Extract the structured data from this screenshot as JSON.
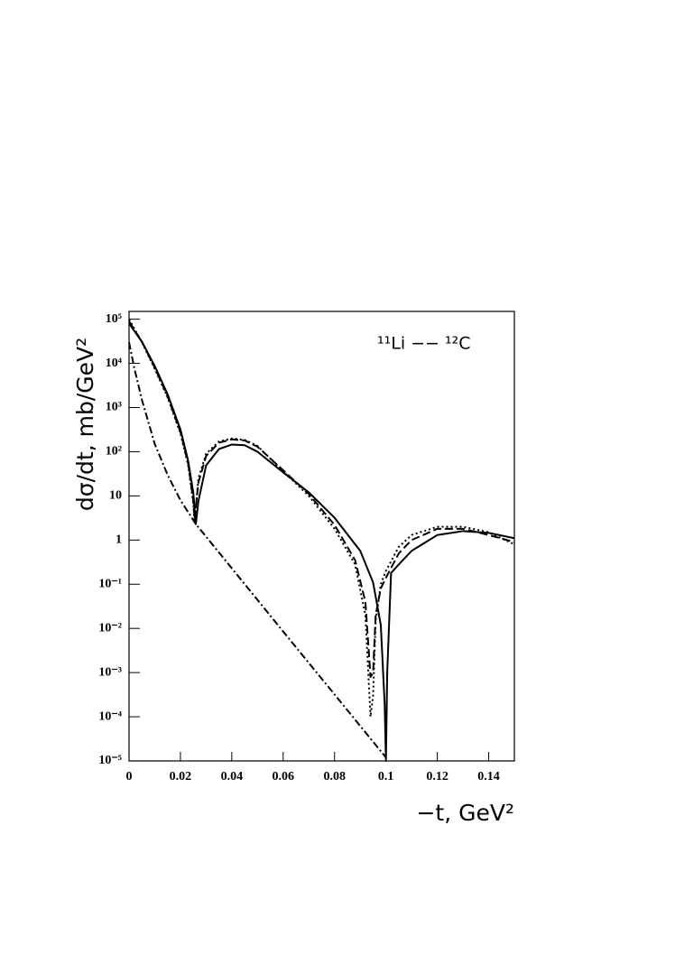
{
  "chart_data": {
    "type": "line",
    "annotation": "¹¹Li −− ¹²C",
    "x_label": "−t, GeV²",
    "y_label": "dσ/dt, mb/GeV²",
    "log_y": true,
    "xlim": [
      0,
      0.15
    ],
    "ylim": [
      1e-05,
      150000
    ],
    "xticks": [
      0,
      0.02,
      0.04,
      0.06,
      0.08,
      0.1,
      0.12,
      0.14
    ],
    "yticks": [
      {
        "value": 100000,
        "label": "10⁵"
      },
      {
        "value": 10000,
        "label": "10⁴"
      },
      {
        "value": 1000,
        "label": "10³"
      },
      {
        "value": 100,
        "label": "10²"
      },
      10,
      1,
      {
        "value": 0.1,
        "label": "10⁻¹"
      },
      {
        "value": 0.01,
        "label": "10⁻²"
      },
      {
        "value": 0.001,
        "label": "10⁻³"
      },
      {
        "value": 0.0001,
        "label": "10⁻⁴"
      },
      {
        "value": 1e-05,
        "label": "10⁻⁵"
      }
    ],
    "series": [
      {
        "color": "#000000",
        "style": "solid",
        "x": [
          0,
          0.005,
          0.01,
          0.015,
          0.02,
          0.023,
          0.025,
          0.026,
          0.027,
          0.03,
          0.035,
          0.04,
          0.045,
          0.05,
          0.06,
          0.07,
          0.08,
          0.09,
          0.095,
          0.098,
          0.0995,
          0.1,
          0.1005,
          0.102,
          0.105,
          0.11,
          0.12,
          0.13,
          0.14,
          0.15
        ],
        "values": [
          80000,
          31000,
          8700,
          2000,
          320,
          63,
          12,
          2.3,
          7.6,
          49,
          115,
          145,
          140,
          100,
          34,
          12,
          3.2,
          0.57,
          0.11,
          0.012,
          0.0002,
          1e-05,
          0.001,
          0.18,
          0.28,
          0.57,
          1.3,
          1.6,
          1.45,
          1.1
        ]
      },
      {
        "color": "#000000",
        "style": "dashed",
        "x": [
          0,
          0.005,
          0.01,
          0.015,
          0.02,
          0.023,
          0.025,
          0.0255,
          0.027,
          0.03,
          0.035,
          0.04,
          0.045,
          0.05,
          0.06,
          0.07,
          0.08,
          0.088,
          0.092,
          0.094,
          0.095,
          0.096,
          0.098,
          0.1,
          0.105,
          0.11,
          0.12,
          0.13,
          0.14,
          0.15
        ],
        "values": [
          90000,
          31000,
          8000,
          1800,
          280,
          55,
          8,
          3,
          20,
          80,
          160,
          190,
          180,
          130,
          38,
          11,
          2.2,
          0.35,
          0.04,
          0.0008,
          0.001,
          0.02,
          0.08,
          0.14,
          0.5,
          1.0,
          1.8,
          1.8,
          1.3,
          0.9
        ]
      },
      {
        "color": "#000000",
        "style": "dotted",
        "x": [
          0,
          0.005,
          0.01,
          0.015,
          0.02,
          0.023,
          0.025,
          0.0255,
          0.027,
          0.03,
          0.035,
          0.04,
          0.045,
          0.05,
          0.06,
          0.07,
          0.08,
          0.088,
          0.092,
          0.094,
          0.095,
          0.096,
          0.098,
          0.1,
          0.105,
          0.11,
          0.12,
          0.13,
          0.14,
          0.15
        ],
        "values": [
          100000,
          30000,
          7500,
          1700,
          260,
          50,
          7,
          2.5,
          25,
          90,
          170,
          200,
          185,
          135,
          36,
          10,
          1.8,
          0.28,
          0.02,
          0.0001,
          0.0003,
          0.015,
          0.1,
          0.2,
          0.7,
          1.3,
          2.0,
          2.0,
          1.5,
          0.8
        ]
      },
      {
        "color": "#000000",
        "style": "dashdot",
        "x": [
          0,
          0.002,
          0.005,
          0.01,
          0.015,
          0.02,
          0.026,
          0.04,
          0.06,
          0.08,
          0.094,
          0.1
        ],
        "values": [
          30000,
          8000,
          1500,
          150,
          30,
          8,
          2.3,
          0.23,
          0.0085,
          0.00032,
          3.2e-05,
          1.2e-05
        ]
      }
    ]
  }
}
